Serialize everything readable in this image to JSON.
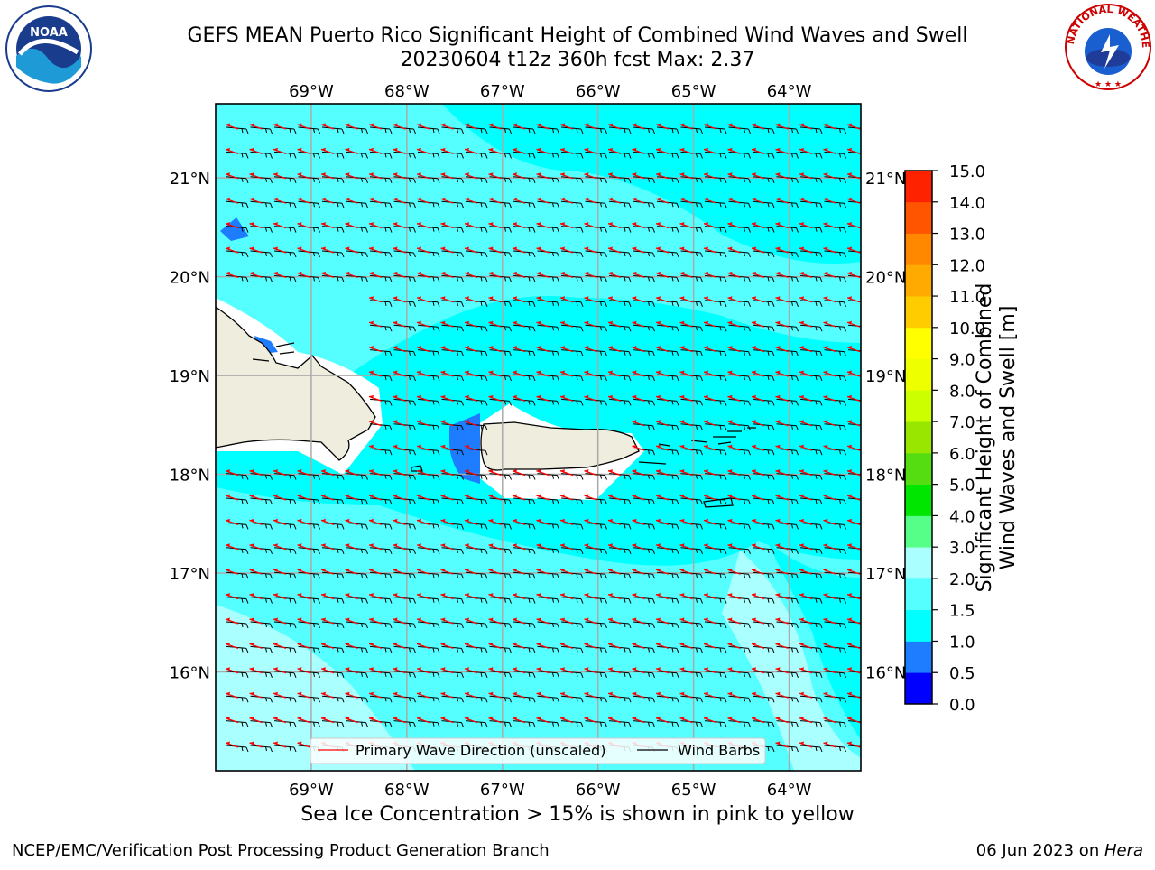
{
  "header": {
    "title_line1": "GEFS MEAN Puerto Rico Significant Height of Combined Wind Waves and Swell",
    "title_line2": "20230604 t12z 360h fcst   Max: 2.37"
  },
  "logos": {
    "left": {
      "text": "NOAA",
      "icon": "noaa-logo"
    },
    "right": {
      "text": "NATIONAL WEATHER SERVICE",
      "icon": "nws-logo"
    }
  },
  "map": {
    "lon_labels": [
      "69°W",
      "68°W",
      "67°W",
      "66°W",
      "65°W",
      "64°W"
    ],
    "lat_labels": [
      "21°N",
      "20°N",
      "19°N",
      "18°N",
      "17°N",
      "16°N"
    ],
    "lon_range": [
      -70.0,
      -63.25
    ],
    "lat_range": [
      15.0,
      21.75
    ],
    "colors": {
      "land": "#efedde",
      "sea_main": "#00ffff",
      "sea_light": "#55ffff",
      "sea_pale": "#aaffff",
      "grid": "#aaaaaa",
      "arrow": "#ff0000",
      "barb": "#000000"
    }
  },
  "legend": {
    "primary": "Primary Wave Direction (unscaled)",
    "barbs": "Wind Barbs"
  },
  "colorbar": {
    "label_line1": "Significant Height of Combined",
    "label_line2": "Wind Waves and Swell [m]",
    "ticks": [
      "0.0",
      "0.5",
      "1.0",
      "1.5",
      "2.0",
      "3.0",
      "4.0",
      "5.0",
      "6.0",
      "7.0",
      "8.0",
      "9.0",
      "10.0",
      "11.0",
      "12.0",
      "13.0",
      "14.0",
      "15.0"
    ],
    "colors": [
      "#0000ff",
      "#1e7cff",
      "#00ffff",
      "#55ffff",
      "#aaffff",
      "#55ff88",
      "#00e600",
      "#55dd11",
      "#99e600",
      "#ccff00",
      "#eeff00",
      "#ffff00",
      "#ffcc00",
      "#ffaa00",
      "#ff8800",
      "#ff5500",
      "#ff2200"
    ]
  },
  "footer": {
    "caption": "Sea Ice Concentration > 15% is shown in pink to yellow",
    "left": "NCEP/EMC/Verification Post Processing Product Generation Branch",
    "right_date": "06 Jun 2023 on ",
    "right_host": "Hera"
  }
}
